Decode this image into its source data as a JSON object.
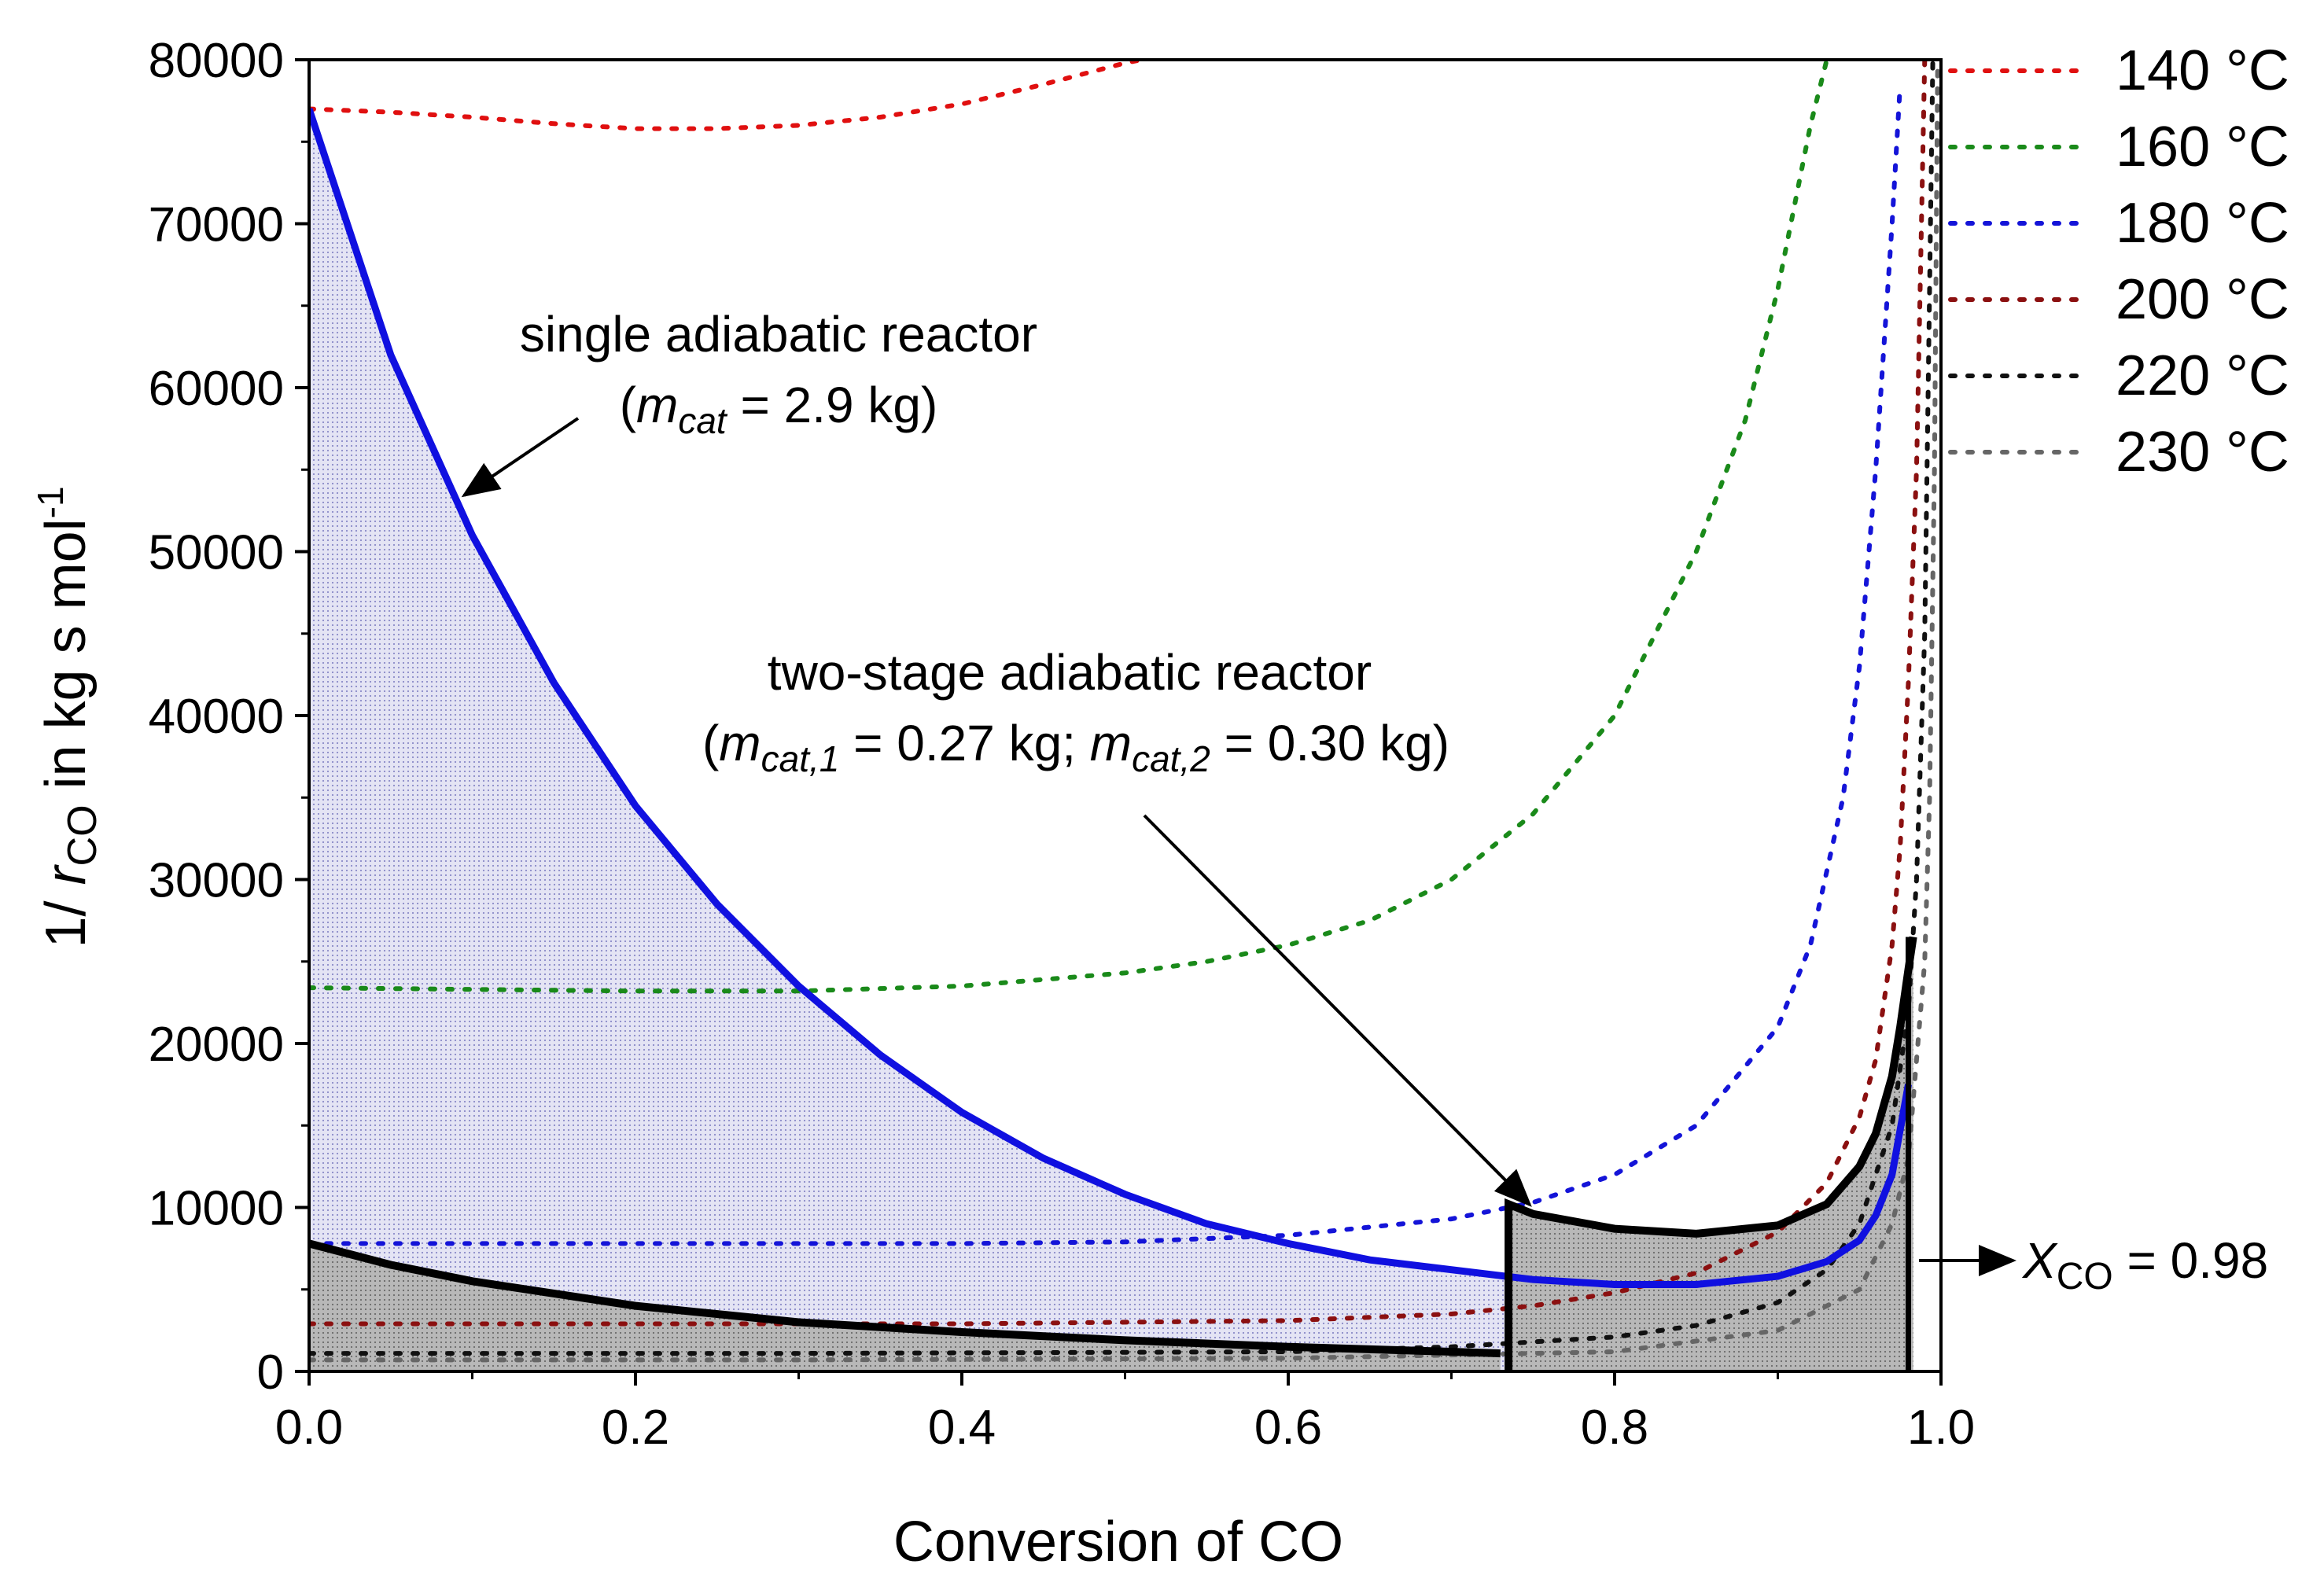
{
  "chart_data": {
    "type": "line",
    "xlabel": "Conversion of CO",
    "ylabel": {
      "prefix": "1/ ",
      "var": "r",
      "sub": "CO",
      "suffix": " in kg s mol",
      "sup": "-1"
    },
    "xlim": [
      0,
      1
    ],
    "ylim": [
      0,
      80000
    ],
    "x_ticks": [
      "0.0",
      "0.2",
      "0.4",
      "0.6",
      "0.8",
      "1.0"
    ],
    "y_ticks": [
      "0",
      "10000",
      "20000",
      "30000",
      "40000",
      "50000",
      "60000",
      "70000",
      "80000"
    ],
    "colors": {
      "single_line": "#1010e0",
      "single_fill": "#dcdcf0",
      "stage_line": "#000000",
      "stage_fill": "#b4b4b4"
    },
    "isotherms": [
      {
        "name": "140 °C",
        "color": "#e01010",
        "x": [
          0,
          0.05,
          0.1,
          0.15,
          0.2,
          0.25,
          0.3,
          0.35,
          0.4,
          0.45,
          0.5,
          0.51
        ],
        "y": [
          77000,
          76800,
          76500,
          76100,
          75800,
          75800,
          76000,
          76500,
          77300,
          78500,
          79800,
          80000
        ]
      },
      {
        "name": "160 °C",
        "color": "#1a8a1a",
        "x": [
          0,
          0.1,
          0.2,
          0.3,
          0.4,
          0.5,
          0.55,
          0.6,
          0.65,
          0.7,
          0.75,
          0.8,
          0.85,
          0.88,
          0.9,
          0.92,
          0.93
        ],
        "y": [
          23400,
          23300,
          23200,
          23200,
          23500,
          24300,
          25000,
          26000,
          27500,
          30000,
          34000,
          40000,
          50000,
          58000,
          66000,
          76000,
          80000
        ]
      },
      {
        "name": "180 °C",
        "color": "#1414d8",
        "x": [
          0,
          0.2,
          0.4,
          0.5,
          0.6,
          0.7,
          0.75,
          0.8,
          0.85,
          0.9,
          0.92,
          0.94,
          0.95,
          0.96,
          0.97,
          0.975
        ],
        "y": [
          7800,
          7800,
          7800,
          7900,
          8300,
          9300,
          10300,
          12000,
          15000,
          21000,
          26000,
          35000,
          43000,
          55000,
          70000,
          78500
        ]
      },
      {
        "name": "200 °C",
        "color": "#8b1010",
        "x": [
          0,
          0.2,
          0.4,
          0.6,
          0.7,
          0.75,
          0.8,
          0.85,
          0.9,
          0.93,
          0.95,
          0.96,
          0.97,
          0.975,
          0.98,
          0.985,
          0.99
        ],
        "y": [
          2900,
          2900,
          2900,
          3100,
          3500,
          4000,
          4800,
          6000,
          8500,
          11500,
          15500,
          19000,
          26000,
          32000,
          42000,
          55000,
          80000
        ]
      },
      {
        "name": "220 °C",
        "color": "#111111",
        "x": [
          0,
          0.3,
          0.6,
          0.7,
          0.8,
          0.85,
          0.9,
          0.93,
          0.95,
          0.97,
          0.98,
          0.985,
          0.99,
          0.995
        ],
        "y": [
          1100,
          1100,
          1200,
          1500,
          2100,
          2800,
          4200,
          6200,
          9000,
          15000,
          22000,
          30000,
          45000,
          80000
        ]
      },
      {
        "name": "230 °C",
        "color": "#666666",
        "x": [
          0,
          0.3,
          0.6,
          0.8,
          0.9,
          0.95,
          0.97,
          0.98,
          0.99,
          0.993,
          0.996,
          0.998
        ],
        "y": [
          700,
          700,
          800,
          1200,
          2500,
          5000,
          9000,
          13000,
          25000,
          35000,
          55000,
          80000
        ]
      }
    ],
    "series": [
      {
        "name": "single adiabatic reactor",
        "x": [
          0,
          0.05,
          0.1,
          0.15,
          0.2,
          0.25,
          0.3,
          0.35,
          0.4,
          0.45,
          0.5,
          0.55,
          0.6,
          0.65,
          0.7,
          0.75,
          0.8,
          0.85,
          0.9,
          0.93,
          0.95,
          0.96,
          0.97,
          0.98
        ],
        "y": [
          77000,
          62000,
          51000,
          42000,
          34500,
          28500,
          23500,
          19300,
          15800,
          13000,
          10800,
          9000,
          7800,
          6800,
          6200,
          5600,
          5300,
          5300,
          5800,
          6700,
          8000,
          9500,
          12000,
          17500
        ]
      },
      {
        "name": "two-stage adiabatic reactor - stage 1",
        "x": [
          0,
          0.05,
          0.1,
          0.2,
          0.3,
          0.4,
          0.5,
          0.6,
          0.7,
          0.73
        ],
        "y": [
          7800,
          6500,
          5500,
          4000,
          3000,
          2400,
          1900,
          1500,
          1200,
          1100
        ]
      },
      {
        "name": "two-stage adiabatic reactor - stage 2",
        "x": [
          0.735,
          0.75,
          0.8,
          0.85,
          0.9,
          0.93,
          0.95,
          0.96,
          0.97,
          0.975,
          0.98,
          0.983
        ],
        "y": [
          10200,
          9600,
          8700,
          8400,
          8900,
          10200,
          12500,
          14500,
          18000,
          21000,
          24500,
          26500
        ]
      }
    ],
    "annotations": {
      "single_title": "single adiabatic reactor",
      "single_mass_var": "m",
      "single_mass_sub": "cat",
      "single_mass_value": " = 2.9 kg)",
      "two_stage_title": "two-stage adiabatic reactor",
      "two_stage_var1": "m",
      "two_stage_sub1": "cat,1",
      "two_stage_val1": " = 0.27 kg;  ",
      "two_stage_var2": "m",
      "two_stage_sub2": "cat,2",
      "two_stage_val2": " = 0.30 kg)",
      "xco_var": "X",
      "xco_sub": "CO",
      "xco_value": " = 0.98",
      "xco_x": 0.98
    }
  }
}
